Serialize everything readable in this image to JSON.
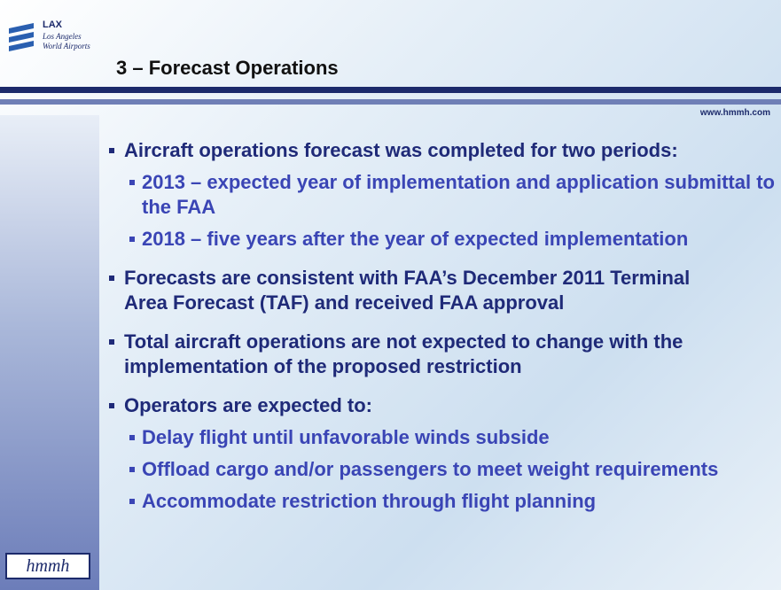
{
  "header": {
    "logo": {
      "name": "LAX",
      "line1": "Los Angeles",
      "line2": "World Airports"
    },
    "title": "3 – Forecast Operations",
    "url": "www.hmmh.com"
  },
  "bullets": [
    {
      "text": "Aircraft operations forecast was completed for two periods:",
      "sub": [
        "2013 – expected year of implementation and application submittal to the FAA",
        "2018 – five years after the year of expected implementation"
      ]
    },
    {
      "text": "Forecasts are consistent with FAA’s December 2011 Terminal Area Forecast (TAF) and received FAA approval",
      "sub": []
    },
    {
      "text": "Total aircraft operations are not expected to change with the implementation of the proposed restriction",
      "sub": []
    },
    {
      "text": "Operators are expected to:",
      "sub": [
        "Delay flight until unfavorable winds subside",
        "Offload cargo and/or passengers to meet weight requirements",
        "Accommodate restriction through flight planning"
      ]
    }
  ],
  "footer": {
    "logo": "hmmh"
  }
}
